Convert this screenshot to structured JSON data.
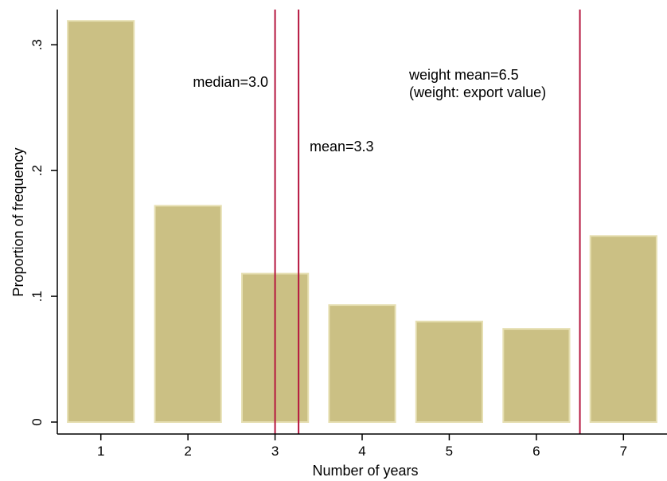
{
  "chart_data": {
    "type": "bar",
    "title": "",
    "xlabel": "Number of years",
    "ylabel": "Proportion of frequency",
    "categories": [
      1,
      2,
      3,
      4,
      5,
      6,
      7
    ],
    "values": [
      0.319,
      0.172,
      0.118,
      0.093,
      0.08,
      0.074,
      0.148
    ],
    "xlim": [
      0.5,
      7.5
    ],
    "ylim": [
      -0.0095,
      0.328
    ],
    "yticks": [
      0,
      0.1,
      0.2,
      0.3
    ],
    "ytick_labels": [
      "0",
      ".1",
      ".2",
      ".3"
    ],
    "xticks": [
      1,
      2,
      3,
      4,
      5,
      6,
      7
    ],
    "xtick_labels": [
      "1",
      "2",
      "3",
      "4",
      "5",
      "6",
      "7"
    ],
    "grid": false,
    "legend": "none",
    "vlines": [
      {
        "x": 3.0,
        "label": "median=3.0"
      },
      {
        "x": 3.27,
        "label": "mean=3.3"
      },
      {
        "x": 6.5,
        "label": "weight mean=6.5",
        "label2": "(weight: export value)"
      }
    ],
    "colors": {
      "bar_fill": "#cbc084",
      "bar_stroke": "#e6dfb2",
      "vline": "#b5163f",
      "axis": "#000000"
    }
  }
}
